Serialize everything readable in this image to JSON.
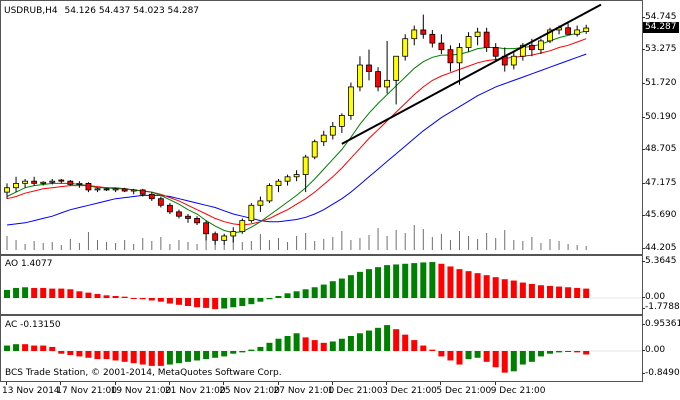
{
  "main_chart": {
    "title": "USDRUB,H4",
    "ohlc": "54.126 54.437 54.023 54.287",
    "current_price": "54.287",
    "price_labels": [
      "54.745",
      "53.275",
      "51.720",
      "50.190",
      "48.705",
      "47.175",
      "45.690",
      "44.205"
    ],
    "price_levels": [
      54.745,
      53.275,
      51.72,
      50.19,
      48.705,
      47.175,
      45.69,
      44.205
    ]
  },
  "ao_panel": {
    "title": "AO 1.4077",
    "labels": [
      "5.3645",
      "0.00",
      "-1.7788"
    ]
  },
  "ac_panel": {
    "title": "AC -0.13150",
    "labels": [
      "0.95361",
      "0.00",
      "-0.84902"
    ]
  },
  "copyright": "BCS Trade Station, © 2001-2014, MetaQuotes Software Corp.",
  "time_axis": {
    "labels": [
      "13 Nov 2014",
      "17 Nov 21:00",
      "19 Nov 21:00",
      "21 Nov 21:00",
      "25 Nov 21:00",
      "27 Nov 21:00",
      "1 Dec 21:00",
      "3 Dec 21:00",
      "5 Dec 21:00",
      "9 Dec 21:00"
    ]
  },
  "colors": {
    "bull_candle": "#ffff00",
    "bear_candle": "#ff0000",
    "ma_fast": "#008000",
    "ma_mid": "#ff0000",
    "ma_slow": "#0000ff",
    "histogram_up": "#008000",
    "histogram_down": "#ff0000",
    "volume": "#6e6e6e",
    "trendline": "#000000"
  },
  "candles": [
    [
      46.8,
      47.2,
      46.5,
      47.0
    ],
    [
      47.0,
      47.5,
      46.8,
      47.2
    ],
    [
      47.2,
      47.4,
      47.0,
      47.3
    ],
    [
      47.3,
      47.5,
      47.1,
      47.2
    ],
    [
      47.2,
      47.3,
      47.1,
      47.25
    ],
    [
      47.25,
      47.4,
      47.15,
      47.3
    ],
    [
      47.35,
      47.4,
      47.2,
      47.3
    ],
    [
      47.3,
      47.35,
      47.1,
      47.15
    ],
    [
      47.15,
      47.3,
      47.0,
      47.2
    ],
    [
      47.2,
      47.25,
      46.8,
      46.9
    ],
    [
      46.9,
      47.0,
      46.8,
      46.95
    ],
    [
      46.95,
      47.0,
      46.85,
      46.9
    ],
    [
      46.9,
      47.0,
      46.8,
      46.95
    ],
    [
      46.95,
      47.0,
      46.8,
      46.85
    ],
    [
      46.85,
      46.95,
      46.7,
      46.9
    ],
    [
      46.9,
      46.95,
      46.6,
      46.7
    ],
    [
      46.7,
      46.8,
      46.4,
      46.5
    ],
    [
      46.5,
      46.6,
      46.1,
      46.2
    ],
    [
      46.2,
      46.3,
      45.8,
      45.9
    ],
    [
      45.9,
      46.0,
      45.6,
      45.7
    ],
    [
      45.7,
      45.8,
      45.4,
      45.6
    ],
    [
      45.6,
      45.7,
      45.3,
      45.4
    ],
    [
      45.4,
      45.5,
      44.6,
      44.9
    ],
    [
      44.9,
      45.0,
      44.4,
      44.6
    ],
    [
      44.6,
      44.9,
      44.4,
      44.8
    ],
    [
      44.8,
      45.2,
      44.5,
      45.0
    ],
    [
      45.0,
      45.6,
      44.9,
      45.5
    ],
    [
      45.5,
      46.3,
      45.4,
      46.2
    ],
    [
      46.2,
      46.6,
      45.9,
      46.4
    ],
    [
      46.4,
      47.2,
      46.3,
      47.1
    ],
    [
      47.1,
      47.4,
      46.8,
      47.3
    ],
    [
      47.3,
      47.6,
      47.1,
      47.5
    ],
    [
      47.5,
      47.8,
      47.3,
      47.6
    ],
    [
      47.6,
      48.5,
      46.8,
      48.4
    ],
    [
      48.4,
      49.2,
      48.3,
      49.1
    ],
    [
      49.1,
      49.6,
      48.9,
      49.4
    ],
    [
      49.4,
      50.0,
      49.2,
      49.8
    ],
    [
      49.8,
      50.4,
      49.5,
      50.3
    ],
    [
      50.3,
      51.8,
      50.1,
      51.6
    ],
    [
      51.6,
      53.0,
      51.4,
      52.6
    ],
    [
      52.6,
      53.3,
      51.9,
      52.3
    ],
    [
      52.3,
      52.5,
      51.4,
      51.6
    ],
    [
      51.6,
      53.7,
      51.3,
      51.9
    ],
    [
      51.9,
      53.0,
      50.8,
      53.0
    ],
    [
      53.0,
      54.0,
      52.8,
      53.8
    ],
    [
      53.8,
      54.4,
      53.5,
      54.2
    ],
    [
      54.2,
      54.9,
      53.8,
      54.0
    ],
    [
      54.0,
      54.2,
      53.4,
      53.6
    ],
    [
      53.6,
      54.0,
      53.1,
      53.3
    ],
    [
      53.3,
      53.5,
      52.3,
      52.7
    ],
    [
      52.7,
      53.6,
      51.7,
      53.4
    ],
    [
      53.4,
      54.1,
      53.2,
      53.9
    ],
    [
      53.9,
      54.3,
      53.5,
      54.1
    ],
    [
      54.1,
      54.3,
      53.2,
      53.4
    ],
    [
      53.4,
      53.6,
      52.8,
      53.0
    ],
    [
      53.0,
      53.4,
      52.3,
      52.6
    ],
    [
      52.6,
      53.2,
      52.4,
      53.0
    ],
    [
      53.0,
      53.6,
      52.8,
      53.5
    ],
    [
      53.5,
      53.8,
      53.0,
      53.3
    ],
    [
      53.3,
      53.8,
      53.1,
      53.7
    ],
    [
      53.7,
      54.3,
      53.6,
      54.2
    ],
    [
      54.2,
      54.4,
      54.0,
      54.3
    ],
    [
      54.3,
      54.5,
      54.0,
      54.0
    ],
    [
      54.0,
      54.4,
      53.9,
      54.2
    ],
    [
      54.126,
      54.437,
      54.023,
      54.287
    ]
  ],
  "moving_averages": {
    "fast": [
      46.6,
      46.8,
      47.0,
      47.1,
      47.15,
      47.2,
      47.2,
      47.2,
      47.15,
      47.1,
      47.0,
      47.0,
      46.95,
      46.95,
      46.9,
      46.85,
      46.8,
      46.65,
      46.45,
      46.25,
      46.0,
      45.8,
      45.5,
      45.25,
      45.05,
      44.95,
      45.0,
      45.2,
      45.45,
      45.75,
      46.05,
      46.35,
      46.65,
      47.0,
      47.4,
      47.85,
      48.3,
      48.75,
      49.3,
      49.9,
      50.4,
      50.85,
      51.25,
      51.65,
      52.05,
      52.45,
      52.75,
      52.95,
      53.05,
      53.05,
      53.1,
      53.2,
      53.35,
      53.4,
      53.4,
      53.35,
      53.35,
      53.4,
      53.45,
      53.55,
      53.7,
      53.85,
      53.95,
      54.05,
      54.15
    ],
    "mid": [
      46.5,
      46.6,
      46.75,
      46.85,
      46.95,
      47.0,
      47.05,
      47.1,
      47.1,
      47.1,
      47.05,
      47.0,
      47.0,
      46.95,
      46.9,
      46.85,
      46.8,
      46.7,
      46.55,
      46.4,
      46.2,
      46.0,
      45.8,
      45.6,
      45.45,
      45.35,
      45.3,
      45.35,
      45.45,
      45.6,
      45.8,
      46.0,
      46.25,
      46.5,
      46.8,
      47.15,
      47.5,
      47.9,
      48.35,
      48.8,
      49.25,
      49.65,
      50.05,
      50.45,
      50.85,
      51.25,
      51.6,
      51.9,
      52.1,
      52.25,
      52.4,
      52.55,
      52.7,
      52.8,
      52.85,
      52.9,
      52.95,
      53.0,
      53.05,
      53.15,
      53.25,
      53.4,
      53.5,
      53.65,
      53.8
    ],
    "slow": [
      45.3,
      45.35,
      45.4,
      45.5,
      45.6,
      45.7,
      45.85,
      46.0,
      46.1,
      46.2,
      46.3,
      46.4,
      46.5,
      46.55,
      46.6,
      46.65,
      46.65,
      46.65,
      46.6,
      46.5,
      46.4,
      46.3,
      46.2,
      46.1,
      45.95,
      45.8,
      45.7,
      45.6,
      45.5,
      45.45,
      45.45,
      45.5,
      45.55,
      45.65,
      45.8,
      46.0,
      46.25,
      46.5,
      46.8,
      47.15,
      47.5,
      47.85,
      48.2,
      48.55,
      48.9,
      49.25,
      49.6,
      49.9,
      50.2,
      50.45,
      50.7,
      50.95,
      51.2,
      51.4,
      51.6,
      51.75,
      51.9,
      52.05,
      52.2,
      52.35,
      52.5,
      52.65,
      52.8,
      52.95,
      53.1
    ]
  },
  "volumes": [
    14,
    10,
    6,
    9,
    7,
    8,
    5,
    11,
    7,
    18,
    10,
    8,
    7,
    10,
    6,
    12,
    9,
    13,
    6,
    10,
    8,
    6,
    14,
    9,
    7,
    15,
    8,
    9,
    16,
    10,
    12,
    8,
    14,
    17,
    9,
    11,
    13,
    19,
    10,
    12,
    15,
    22,
    14,
    20,
    17,
    25,
    21,
    13,
    16,
    10,
    19,
    14,
    11,
    17,
    12,
    20,
    10,
    9,
    13,
    7,
    11,
    9,
    6,
    5,
    4
  ],
  "ao_values": [
    1.2,
    1.5,
    1.6,
    1.5,
    1.5,
    1.4,
    1.4,
    1.3,
    1.0,
    0.8,
    0.6,
    0.4,
    0.3,
    0.2,
    0.0,
    -0.2,
    -0.4,
    -0.6,
    -0.9,
    -1.1,
    -1.3,
    -1.5,
    -1.6,
    -1.8,
    -1.7,
    -1.5,
    -1.3,
    -1.0,
    -0.6,
    -0.2,
    0.3,
    0.7,
    1.0,
    1.3,
    1.6,
    2.0,
    2.5,
    2.9,
    3.4,
    3.9,
    4.3,
    4.6,
    4.9,
    5.0,
    5.1,
    5.2,
    5.3,
    5.36,
    5.1,
    4.7,
    4.3,
    4.0,
    3.7,
    3.4,
    3.1,
    2.8,
    2.6,
    2.3,
    2.1,
    1.9,
    1.8,
    1.7,
    1.6,
    1.5,
    1.4
  ],
  "ac_values": [
    0.2,
    0.25,
    0.25,
    0.2,
    0.2,
    0.15,
    -0.1,
    -0.15,
    -0.2,
    -0.25,
    -0.3,
    -0.3,
    -0.35,
    -0.4,
    -0.45,
    -0.5,
    -0.55,
    -0.55,
    -0.5,
    -0.45,
    -0.4,
    -0.35,
    -0.3,
    -0.25,
    -0.2,
    -0.1,
    -0.05,
    0.05,
    0.15,
    0.3,
    0.45,
    0.55,
    0.65,
    0.5,
    0.4,
    0.3,
    0.35,
    0.45,
    0.55,
    0.65,
    0.75,
    0.85,
    0.95,
    0.8,
    0.6,
    0.4,
    0.2,
    0.05,
    -0.2,
    -0.35,
    -0.5,
    -0.3,
    -0.25,
    -0.4,
    -0.6,
    -0.8,
    -0.75,
    -0.5,
    -0.4,
    -0.2,
    -0.1,
    -0.05,
    0.0,
    -0.05,
    -0.13
  ]
}
